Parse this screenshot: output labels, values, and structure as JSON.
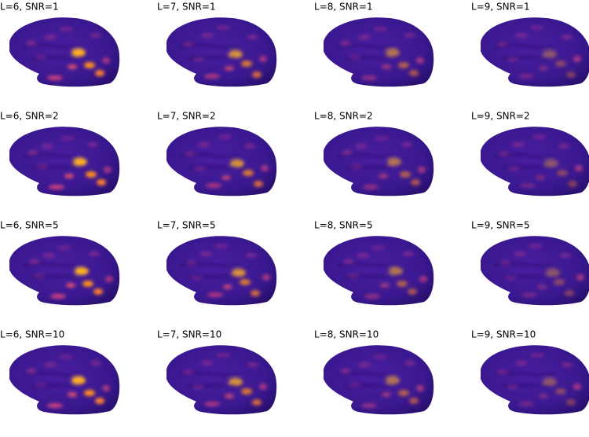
{
  "panels": [
    [
      "L=6, SNR=1",
      "L=7, SNR=1",
      "L=8, SNR=1",
      "L=9, SNR=1"
    ],
    [
      "L=6, SNR=2",
      "L=7, SNR=2",
      "L=8, SNR=2",
      "L=9, SNR=2"
    ],
    [
      "L=6, SNR=5",
      "L=7, SNR=5",
      "L=8, SNR=5",
      "L=9, SNR=5"
    ],
    [
      "L=6, SNR=10",
      "L=7, SNR=10",
      "L=8, SNR=10",
      "L=9, SNR=10"
    ]
  ]
}
